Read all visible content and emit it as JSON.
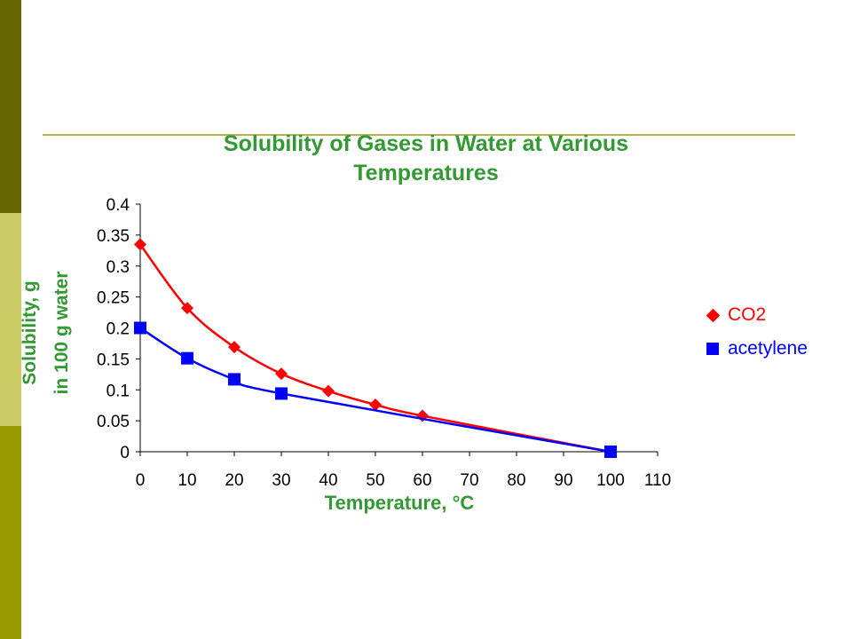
{
  "colors": {
    "sidebar_top": "#666600",
    "sidebar_middle": "#cccc66",
    "sidebar_bottom": "#999900",
    "title_green": "#339933",
    "co2_red": "#ff0000",
    "acetylene_blue": "#0000ff"
  },
  "chart_data": {
    "type": "line",
    "title": "Solubility of Gases in Water at Various Temperatures",
    "title_lines": [
      "Solubility of Gases in Water at Various",
      "Temperatures"
    ],
    "xlabel": "Temperature, °C",
    "ylabel": "Solubility, g in 100 g water",
    "ylabel_lines": [
      "Solubility, g",
      "in 100 g water"
    ],
    "xlim": [
      0,
      110
    ],
    "ylim": [
      0,
      0.4
    ],
    "x_ticks": [
      "0",
      "10",
      "20",
      "30",
      "40",
      "50",
      "60",
      "70",
      "80",
      "90",
      "100",
      "110"
    ],
    "y_ticks": [
      "0",
      "0.05",
      "0.1",
      "0.15",
      "0.2",
      "0.25",
      "0.3",
      "0.35",
      "0.4"
    ],
    "grid": false,
    "legend_position": "right",
    "series": [
      {
        "name": "CO2",
        "color": "#ff0000",
        "marker": "diamond",
        "x": [
          0,
          10,
          20,
          30,
          40,
          50,
          60,
          100
        ],
        "y": [
          0.335,
          0.232,
          0.169,
          0.126,
          0.098,
          0.076,
          0.058,
          0.0
        ]
      },
      {
        "name": "acetylene",
        "color": "#0000ff",
        "marker": "square",
        "x": [
          0,
          10,
          20,
          30,
          100
        ],
        "y": [
          0.2,
          0.151,
          0.117,
          0.094,
          0.0
        ]
      }
    ]
  }
}
